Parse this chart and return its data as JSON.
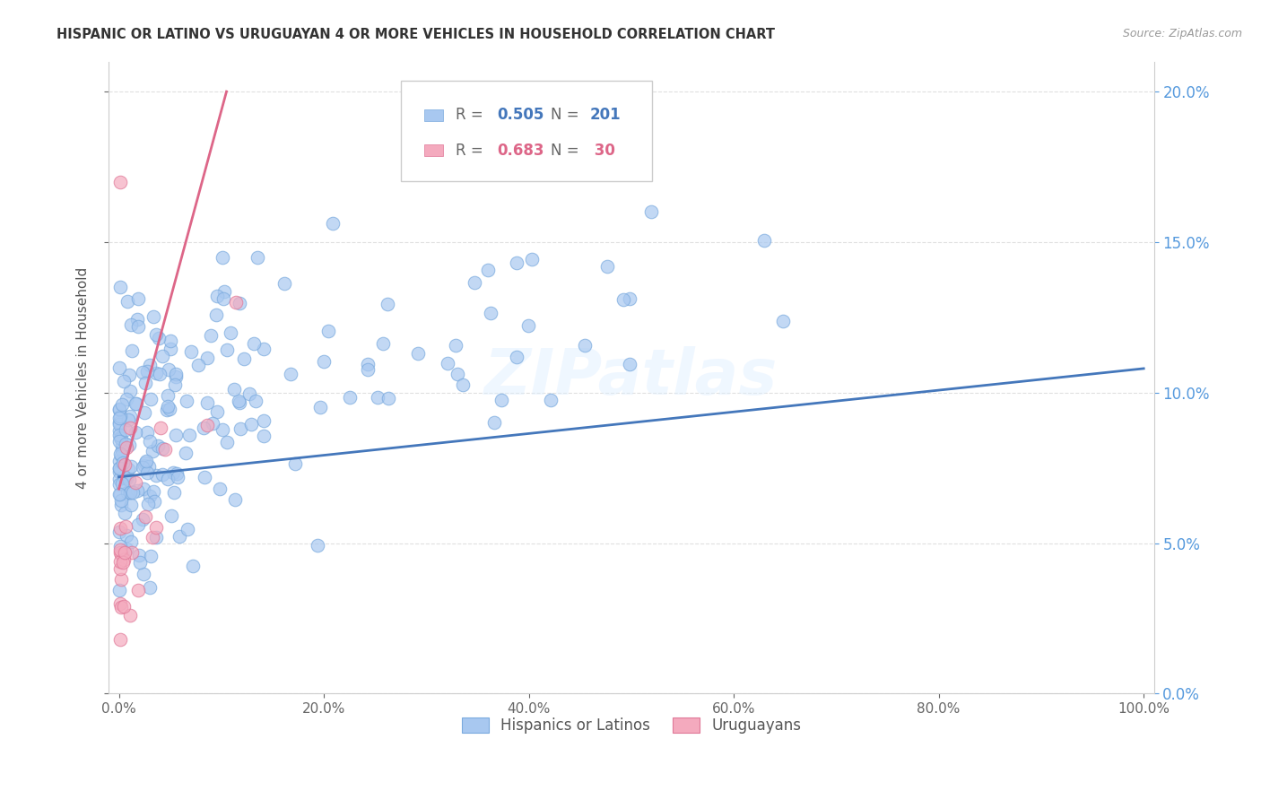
{
  "title": "HISPANIC OR LATINO VS URUGUAYAN 4 OR MORE VEHICLES IN HOUSEHOLD CORRELATION CHART",
  "source": "Source: ZipAtlas.com",
  "ylabel_label": "4 or more Vehicles in Household",
  "R_blue": 0.505,
  "N_blue": 201,
  "R_pink": 0.683,
  "N_pink": 30,
  "background_color": "#ffffff",
  "grid_color": "#e0e0e0",
  "title_color": "#333333",
  "blue_color": "#a8c8f0",
  "blue_edge_color": "#7aaade",
  "pink_color": "#f4aabe",
  "pink_edge_color": "#e07898",
  "blue_line_color": "#4477bb",
  "pink_line_color": "#dd6688",
  "watermark": "ZIPatlas",
  "label_blue": "Hispanics or Latinos",
  "label_pink": "Uruguayans",
  "xlim": [
    0.0,
    1.0
  ],
  "ylim": [
    0.0,
    0.21
  ],
  "blue_line_x0": 0.0,
  "blue_line_y0": 0.072,
  "blue_line_x1": 1.0,
  "blue_line_y1": 0.108,
  "pink_line_x0": 0.0,
  "pink_line_y0": 0.068,
  "pink_line_x1": 0.105,
  "pink_line_y1": 0.2
}
